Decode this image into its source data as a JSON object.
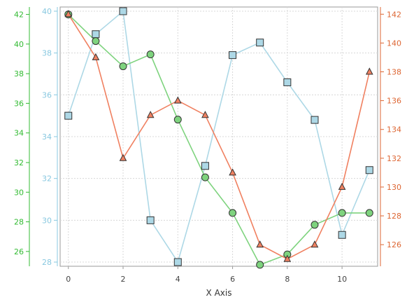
{
  "chart_data": {
    "type": "line",
    "xlabel": "X Axis",
    "x": [
      0,
      1,
      2,
      3,
      4,
      5,
      6,
      7,
      8,
      9,
      10,
      11
    ],
    "xlim": [
      -0.3,
      11.3
    ],
    "x_ticks": [
      0,
      2,
      4,
      6,
      8,
      10
    ],
    "grid": true,
    "axes": [
      {
        "id": "green",
        "position": "left-outer",
        "color": "#33bb33",
        "ylim": [
          25.0,
          42.5
        ],
        "ticks": [
          26,
          28,
          30,
          32,
          34,
          36,
          38,
          40,
          42
        ]
      },
      {
        "id": "blue",
        "position": "left-inner",
        "color": "#88c8e0",
        "ylim": [
          27.8,
          40.2
        ],
        "ticks": [
          28,
          30,
          32,
          34,
          36,
          38,
          40
        ]
      },
      {
        "id": "orange",
        "position": "right",
        "color": "#dd6633",
        "ylim": [
          124.5,
          142.5
        ],
        "ticks": [
          126,
          128,
          130,
          132,
          134,
          136,
          138,
          140,
          142
        ]
      }
    ],
    "series": [
      {
        "axis": "blue",
        "marker": "square",
        "line_color": "#add8e6",
        "marker_fill": "#add8e6",
        "values": [
          35,
          38.9,
          40,
          30,
          28,
          32.6,
          37.9,
          38.5,
          36.6,
          34.8,
          29.3,
          32.4
        ]
      },
      {
        "axis": "green",
        "marker": "circle",
        "line_color": "#7ed37e",
        "marker_fill": "#7ed37e",
        "values": [
          42,
          40.2,
          38.5,
          39.3,
          34.9,
          31,
          28.6,
          25.1,
          25.8,
          27.8,
          28.6,
          28.6
        ]
      },
      {
        "axis": "orange",
        "marker": "triangle",
        "line_color": "#f08060",
        "marker_fill": "#f08060",
        "values": [
          142,
          139,
          132,
          135,
          136,
          135,
          131,
          126,
          125,
          126,
          130,
          138
        ]
      }
    ]
  }
}
